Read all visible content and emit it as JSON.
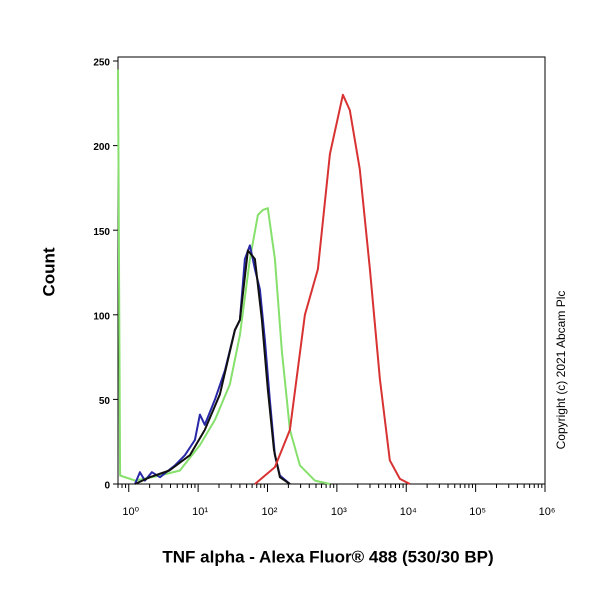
{
  "chart_data": {
    "type": "line",
    "xlabel": "TNF alpha - Alexa Fluor® 488 (530/30 BP)",
    "ylabel": "Count",
    "annotation": "Copyright (c) 2021 Abcam Plc",
    "xscale": "log",
    "xlim": [
      0.7,
      1000000
    ],
    "xticks": [
      {
        "value": 1,
        "label": "10⁰"
      },
      {
        "value": 10,
        "label": "10¹"
      },
      {
        "value": 100,
        "label": "10²"
      },
      {
        "value": 1000,
        "label": "10³"
      },
      {
        "value": 10000,
        "label": "10⁴"
      },
      {
        "value": 100000,
        "label": "10⁵"
      },
      {
        "value": 1000000,
        "label": "10⁶"
      }
    ],
    "ylim": [
      0,
      250
    ],
    "yticks": [
      0,
      50,
      100,
      150,
      200,
      250
    ],
    "series": [
      {
        "color": "#86e06c",
        "x": [
          0.7,
          0.75,
          1.23,
          2.82,
          5.47,
          10.6,
          17.5,
          28.7,
          40,
          55.7,
          72.7,
          85.9,
          101,
          128,
          161,
          210,
          293,
          482,
          793
        ],
        "values": [
          245,
          5,
          2,
          5,
          8,
          23,
          38,
          59,
          88,
          133,
          159,
          162,
          163,
          133,
          79,
          32,
          11,
          2,
          0
        ]
      },
      {
        "color": "#2828a8",
        "x": [
          1.23,
          1.45,
          1.71,
          2.16,
          2.82,
          4.63,
          6.45,
          8.99,
          10.6,
          12.5,
          17.5,
          24.3,
          33.9,
          40,
          47.2,
          55.7,
          65.8,
          77.6,
          91.8,
          108,
          128,
          151,
          210
        ],
        "values": [
          0,
          7,
          2,
          7,
          4,
          11,
          17,
          26,
          41,
          35,
          50,
          67,
          91,
          97,
          133,
          141,
          127,
          115,
          85,
          50,
          17,
          5,
          0
        ]
      },
      {
        "color": "#111111",
        "x": [
          1.23,
          2.02,
          3.86,
          7.62,
          12.5,
          20.6,
          33.9,
          40,
          52.2,
          65.8,
          83,
          101,
          124,
          151,
          210
        ],
        "values": [
          0,
          4,
          8,
          17,
          32,
          53,
          91,
          97,
          138,
          133,
          97,
          56,
          20,
          4,
          0
        ]
      },
      {
        "color": "#d83232",
        "x": [
          66,
          128,
          210,
          346,
          532,
          793,
          1220,
          1538,
          2143,
          2990,
          4170,
          5800,
          8090,
          11270
        ],
        "values": [
          0,
          10,
          32,
          100,
          127,
          195,
          230,
          221,
          186,
          127,
          62,
          14,
          3,
          0
        ]
      }
    ]
  }
}
